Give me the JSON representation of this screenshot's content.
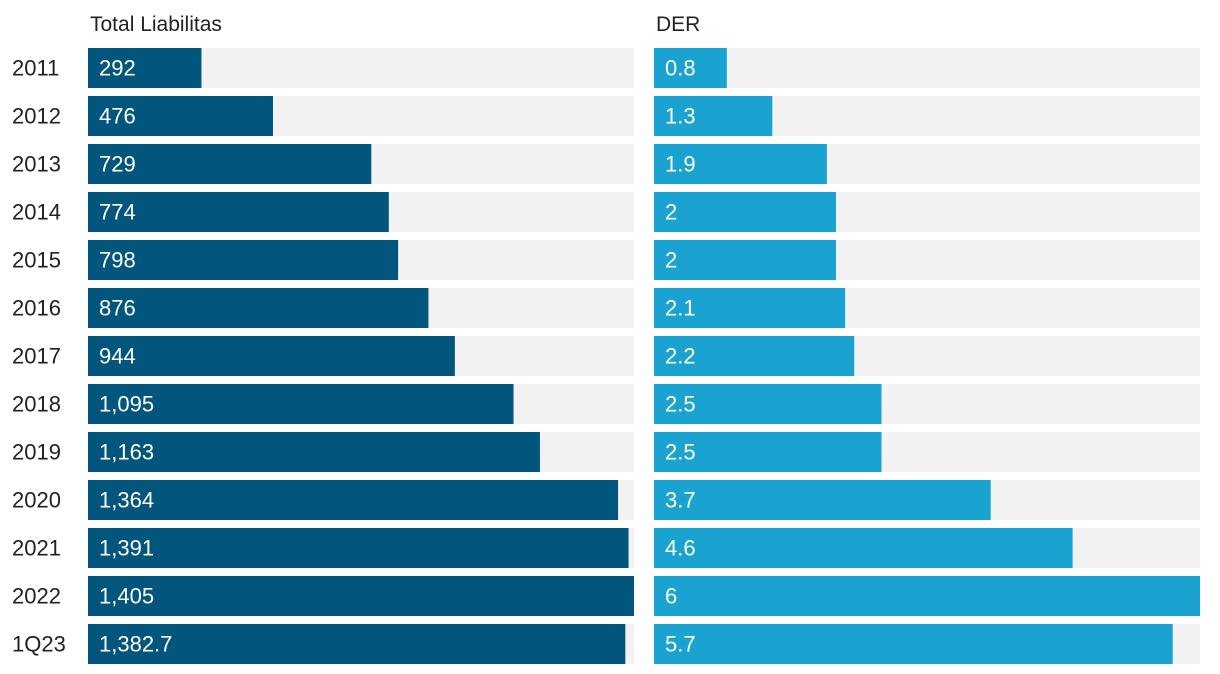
{
  "chart_data": {
    "type": "bar",
    "orientation": "horizontal",
    "categories": [
      "2011",
      "2012",
      "2013",
      "2014",
      "2015",
      "2016",
      "2017",
      "2018",
      "2019",
      "2020",
      "2021",
      "2022",
      "1Q23"
    ],
    "series": [
      {
        "name": "Total Liabilitas",
        "values": [
          292,
          476,
          729,
          774,
          798,
          876,
          944,
          1095,
          1163,
          1364,
          1391,
          1405,
          1382.7
        ],
        "labels": [
          "292",
          "476",
          "729",
          "774",
          "798",
          "876",
          "944",
          "1,095",
          "1,163",
          "1,364",
          "1,391",
          "1,405",
          "1,382.7"
        ],
        "max": 1405,
        "color": "#02557c",
        "track_color": "#f2f2f2"
      },
      {
        "name": "DER",
        "values": [
          0.8,
          1.3,
          1.9,
          2,
          2,
          2.1,
          2.2,
          2.5,
          2.5,
          3.7,
          4.6,
          6,
          5.7
        ],
        "labels": [
          "0.8",
          "1.3",
          "1.9",
          "2",
          "2",
          "2.1",
          "2.2",
          "2.5",
          "2.5",
          "3.7",
          "4.6",
          "6",
          "5.7"
        ],
        "max": 6,
        "color": "#1aa3d0",
        "track_color": "#f2f2f2"
      }
    ]
  }
}
